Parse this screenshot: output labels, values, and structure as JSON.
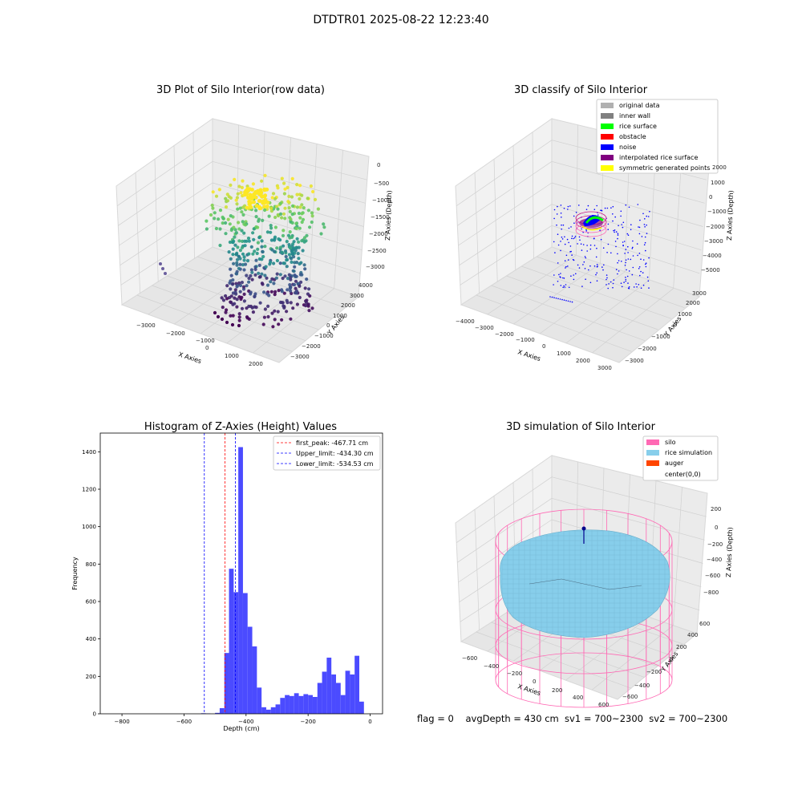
{
  "figure": {
    "suptitle": "DTDTR01 2025-08-22 12:23:40",
    "footer": "flag = 0    avgDepth = 430 cm  sv1 = 700~2300  sv2 = 700~2300"
  },
  "colors": {
    "histogram_bar": "#4b4bff",
    "first_peak_line": "#ff0000",
    "limit_line": "#0000ff",
    "silo": "#ff69b4",
    "rice_simulation": "#87ceeb",
    "auger": "#ff4500",
    "inner_wall": "#808080",
    "rice_surface": "#00ff00",
    "obstacle": "#ff0000",
    "noise": "#0000ff",
    "interpolated": "#800080",
    "symmetric": "#ffff00",
    "original": "#b0b0b0"
  },
  "chart_data": [
    {
      "type": "scatter",
      "title": "3D Plot of Silo Interior(row data)",
      "xlabel": "X Axies",
      "ylabel": "Y Axies",
      "zlabel": "Z Axies (Depth)",
      "x_ticks": [
        "−3000",
        "−2000",
        "−1000",
        "0",
        "1000",
        "2000"
      ],
      "y_ticks": [
        "−3000",
        "−2000",
        "−1000",
        "0",
        "1000",
        "2000",
        "3000",
        "4000"
      ],
      "z_ticks": [
        "0",
        "−500",
        "−1000",
        "−1500",
        "−2000",
        "−2500",
        "−3000"
      ],
      "colormap": "viridis"
    },
    {
      "type": "scatter",
      "title": "3D classify of Silo Interior",
      "xlabel": "X Axies",
      "ylabel": "Y Axies",
      "zlabel": "Z Axies (Depth)",
      "x_ticks": [
        "−4000",
        "−3000",
        "−2000",
        "−1000",
        "0",
        "1000",
        "2000",
        "3000"
      ],
      "y_ticks": [
        "−3000",
        "−2000",
        "−1000",
        "0",
        "1000",
        "2000",
        "3000"
      ],
      "z_ticks": [
        "2000",
        "1000",
        "0",
        "−1000",
        "−2000",
        "−3000",
        "−4000",
        "−5000"
      ],
      "legend": [
        "original data",
        "inner wall",
        "rice surface",
        "obstacle",
        "noise",
        "interpolated rice surface",
        "symmetric generated points"
      ],
      "legend_placement": "top-right"
    },
    {
      "type": "bar",
      "title": "Histogram of Z-Axies (Height) Values",
      "xlabel": "Depth (cm)",
      "ylabel": "Frequency",
      "xlim": [
        -870,
        40
      ],
      "ylim": [
        0,
        1500
      ],
      "x_ticks": [
        -800,
        -600,
        -400,
        -200,
        0
      ],
      "x_tick_labels": [
        "−800",
        "−600",
        "−400",
        "−200",
        "0"
      ],
      "y_ticks": [
        0,
        200,
        400,
        600,
        800,
        1000,
        1200,
        1400
      ],
      "y_tick_labels": [
        "0",
        "200",
        "400",
        "600",
        "800",
        "1000",
        "1200",
        "1400"
      ],
      "bin_start": -860,
      "bin_width": 15,
      "values": [
        0,
        0,
        0,
        0,
        0,
        0,
        0,
        0,
        0,
        0,
        0,
        0,
        0,
        0,
        0,
        0,
        0,
        0,
        0,
        0,
        0,
        3,
        2,
        0,
        5,
        30,
        325,
        775,
        650,
        1425,
        645,
        465,
        360,
        140,
        35,
        22,
        35,
        50,
        85,
        100,
        95,
        110,
        95,
        105,
        100,
        90,
        165,
        225,
        300,
        210,
        165,
        100,
        230,
        210,
        310,
        65
      ],
      "lines": [
        {
          "x": -467.71,
          "label": "first_peak: -467.71 cm",
          "color": "#ff0000"
        },
        {
          "x": -434.3,
          "label": "Upper_limit: -434.30 cm",
          "color": "#0000ff"
        },
        {
          "x": -534.53,
          "label": "Lower_limit: -534.53 cm",
          "color": "#0000ff"
        }
      ],
      "legend_placement": "top-right"
    },
    {
      "type": "area",
      "title": "3D simulation of Silo Interior",
      "xlabel": "X Axies",
      "ylabel": "Y Axies",
      "zlabel": "Z Axies (Depth)",
      "x_ticks": [
        "−600",
        "−400",
        "−200",
        "0",
        "200",
        "400",
        "600"
      ],
      "y_ticks": [
        "−600",
        "−400",
        "−200",
        "0",
        "200",
        "400",
        "600"
      ],
      "z_ticks": [
        "200",
        "0",
        "−200",
        "−400",
        "−600",
        "−800"
      ],
      "legend": [
        "silo",
        "rice simulation",
        "auger",
        "center(0,0)"
      ],
      "legend_placement": "top-right"
    }
  ]
}
